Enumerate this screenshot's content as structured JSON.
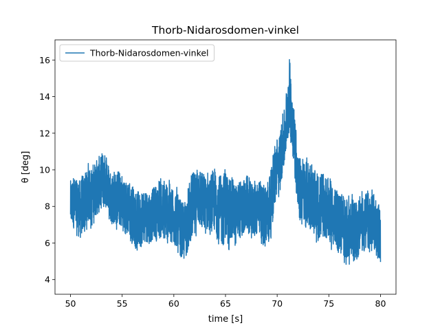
{
  "chart_data": {
    "type": "line",
    "title": "Thorb-Nidarosdomen-vinkel",
    "xlabel": "time [s]",
    "ylabel": "θ [deg]",
    "xlim": [
      48.5,
      81.5
    ],
    "ylim": [
      3.2,
      17.1
    ],
    "xticks": [
      50,
      55,
      60,
      65,
      70,
      75,
      80
    ],
    "yticks": [
      4,
      6,
      8,
      10,
      12,
      14,
      16
    ],
    "grid": false,
    "legend_position": "top-left",
    "series": [
      {
        "name": "Thorb-Nidarosdomen-vinkel",
        "color": "#1f77b4",
        "envelope": {
          "x": [
            50.0,
            51.0,
            52.0,
            53.0,
            54.0,
            55.0,
            56.0,
            57.0,
            58.0,
            59.0,
            60.0,
            61.0,
            62.0,
            63.0,
            64.0,
            65.0,
            66.0,
            67.0,
            68.0,
            69.0,
            69.7,
            70.3,
            70.8,
            71.2,
            71.6,
            72.0,
            73.0,
            74.0,
            75.0,
            76.0,
            77.0,
            78.0,
            79.0,
            80.0
          ],
          "min": [
            6.3,
            5.8,
            6.5,
            7.2,
            6.8,
            6.2,
            5.5,
            5.0,
            5.8,
            5.5,
            5.4,
            4.6,
            5.6,
            5.8,
            5.7,
            5.2,
            5.8,
            6.0,
            5.7,
            5.2,
            7.0,
            8.5,
            10.0,
            11.0,
            10.0,
            7.0,
            6.0,
            5.8,
            5.3,
            5.0,
            4.0,
            5.3,
            4.8,
            4.6
          ],
          "max": [
            9.8,
            10.2,
            10.8,
            11.2,
            10.6,
            10.3,
            9.6,
            9.1,
            9.4,
            10.3,
            9.8,
            8.7,
            10.6,
            10.0,
            10.4,
            10.6,
            10.2,
            10.0,
            9.7,
            10.3,
            11.8,
            12.8,
            14.2,
            16.5,
            14.6,
            11.8,
            11.0,
            10.5,
            10.1,
            9.5,
            8.8,
            9.5,
            9.3,
            8.5
          ]
        }
      }
    ]
  }
}
